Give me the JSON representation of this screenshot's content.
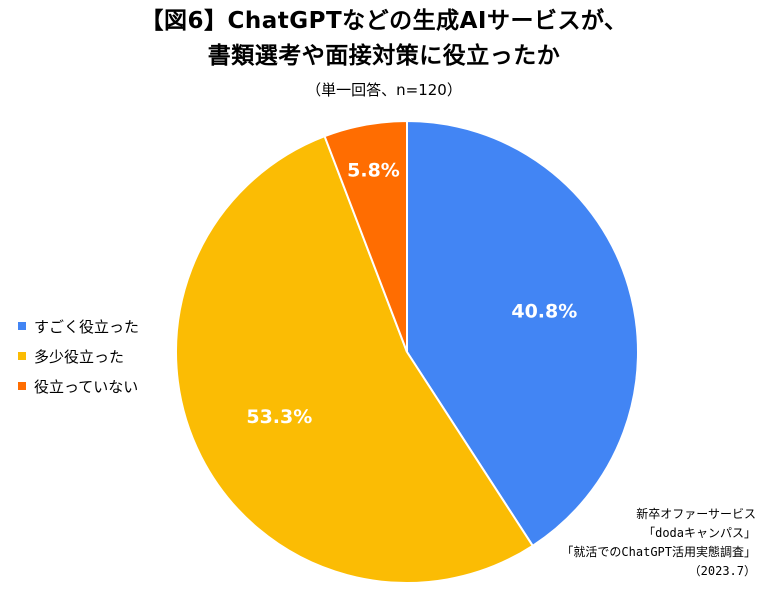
{
  "title": {
    "line1": "【図6】ChatGPTなどの生成AIサービスが、",
    "line2": "書類選考や面接対策に役立ったか",
    "subtitle": "（単一回答、n=120）"
  },
  "chart_data": {
    "type": "pie",
    "title": "【図6】ChatGPTなどの生成AIサービスが、書類選考や面接対策に役立ったか",
    "subtitle": "（単一回答、n=120）",
    "start": "12 o'clock",
    "direction": "clockwise",
    "legend_position": "left",
    "slices": [
      {
        "label": "すごく役立った",
        "value": 40.8,
        "display": "40.8%",
        "color": "#4285F4"
      },
      {
        "label": "多少役立った",
        "value": 53.3,
        "display": "53.3%",
        "color": "#FBBC04"
      },
      {
        "label": "役立っていない",
        "value": 5.8,
        "display": "5.8%",
        "color": "#FF6D01"
      }
    ]
  },
  "source": {
    "lines": [
      "新卒オファーサービス",
      "「dodaキャンパス」",
      "「就活でのChatGPT活用実態調査」",
      "（2023.7）"
    ]
  }
}
